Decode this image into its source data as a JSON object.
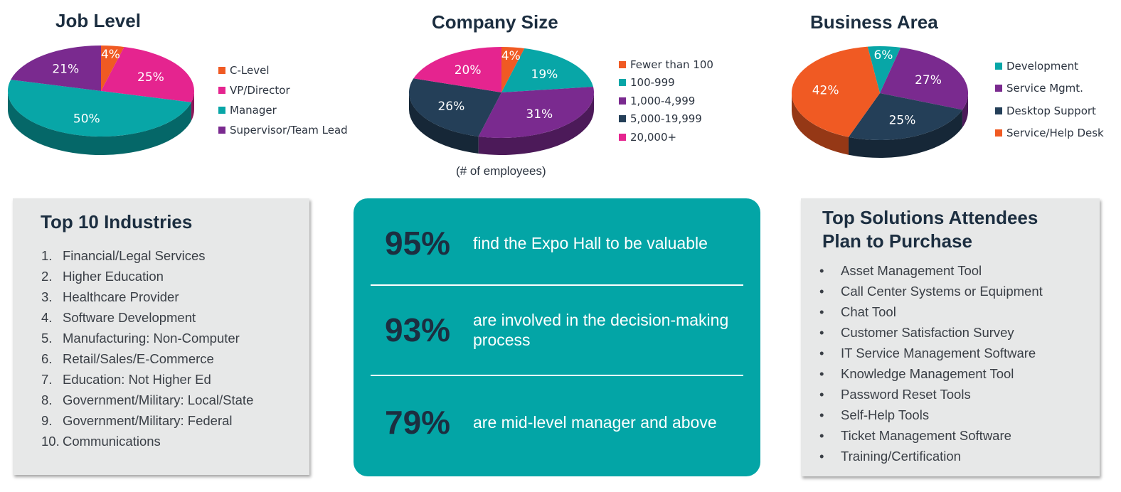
{
  "chart_data": [
    {
      "type": "pie",
      "title": "Job Level",
      "slices": [
        {
          "label": "C-Level",
          "value": 4,
          "color": "#f05a23"
        },
        {
          "label": "VP/Director",
          "value": 25,
          "color": "#e5248f"
        },
        {
          "label": "Manager",
          "value": 50,
          "color": "#08a6a7"
        },
        {
          "label": "Supervisor/Team Lead",
          "value": 21,
          "color": "#7a2a8f"
        }
      ]
    },
    {
      "type": "pie",
      "title": "Company Size",
      "footnote": "(# of employees)",
      "slices": [
        {
          "label": "Fewer than 100",
          "value": 4,
          "color": "#f05a23"
        },
        {
          "label": "100-999",
          "value": 19,
          "color": "#08a6a7"
        },
        {
          "label": "1,000-4,999",
          "value": 31,
          "color": "#7a2a8f"
        },
        {
          "label": "5,000-19,999",
          "value": 26,
          "color": "#243f58"
        },
        {
          "label": "20,000+",
          "value": 20,
          "color": "#e5248f"
        }
      ]
    },
    {
      "type": "pie",
      "title": "Business Area",
      "slices": [
        {
          "label": "Development",
          "value": 6,
          "color": "#08a6a7"
        },
        {
          "label": "Service Mgmt.",
          "value": 27,
          "color": "#7a2a8f"
        },
        {
          "label": "Desktop Support",
          "value": 25,
          "color": "#243f58"
        },
        {
          "label": "Service/Help Desk",
          "value": 42,
          "color": "#f05a23"
        }
      ]
    }
  ],
  "industries": {
    "title": "Top 10 Industries",
    "items": [
      {
        "num": "1.",
        "text": "Financial/Legal Services"
      },
      {
        "num": "2.",
        "text": "Higher Education"
      },
      {
        "num": "3.",
        "text": "Healthcare Provider"
      },
      {
        "num": "4.",
        "text": "Software Development"
      },
      {
        "num": "5.",
        "text": "Manufacturing: Non-Computer"
      },
      {
        "num": "6.",
        "text": "Retail/Sales/E-Commerce"
      },
      {
        "num": "7.",
        "text": "Education: Not Higher Ed"
      },
      {
        "num": "8.",
        "text": "Government/Military: Local/State"
      },
      {
        "num": "9.",
        "text": "Government/Military: Federal"
      },
      {
        "num": "10.",
        "text": "Communications"
      }
    ]
  },
  "stats": [
    {
      "value": "95%",
      "text": "find the Expo Hall to be valuable"
    },
    {
      "value": "93%",
      "text": "are involved in the decision-making process"
    },
    {
      "value": "79%",
      "text": "are mid-level manager and above"
    }
  ],
  "solutions": {
    "title_line1": "Top Solutions Attendees",
    "title_line2": "Plan to Purchase",
    "bullet": "•",
    "items": [
      "Asset Management Tool",
      "Call Center Systems or Equipment",
      "Chat Tool",
      "Customer Satisfaction Survey",
      "IT Service Management Software",
      "Knowledge Management Tool",
      "Password Reset Tools",
      "Self-Help Tools",
      "Ticket Management Software",
      "Training/Certification"
    ]
  }
}
